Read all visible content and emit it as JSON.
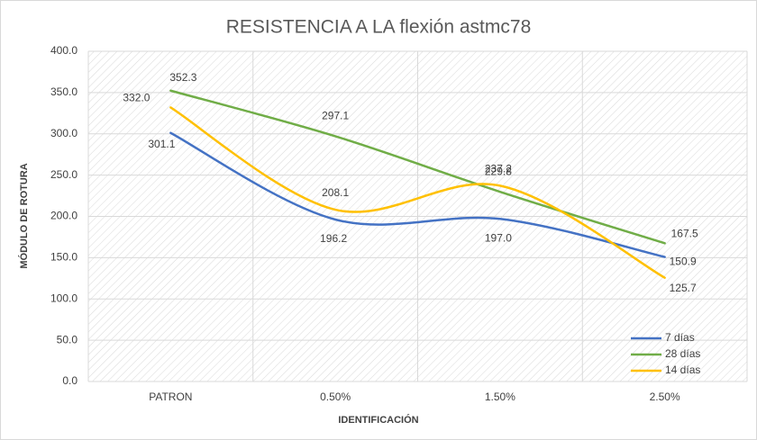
{
  "chart_data": {
    "type": "line",
    "title": "RESISTENCIA A LA flexión astmc78",
    "x_label": "IDENTIFICACIÓN",
    "y_label": "MÓDULO DE ROTURA",
    "categories": [
      "PATRON",
      "0.50%",
      "1.50%",
      "2.50%"
    ],
    "series": [
      {
        "name": "7 días",
        "color": "#4472c4",
        "values": [
          301.1,
          196.2,
          197.0,
          150.9
        ],
        "value_labels": [
          "301.1",
          "196.2",
          "197.0",
          "150.9"
        ]
      },
      {
        "name": "28 días",
        "color": "#70ad47",
        "values": [
          352.3,
          297.1,
          229.8,
          167.5
        ],
        "value_labels": [
          "352.3",
          "297.1",
          "229.8",
          "167.5"
        ]
      },
      {
        "name": "14 días",
        "color": "#ffc000",
        "values": [
          332.0,
          208.1,
          237.2,
          125.7
        ],
        "value_labels": [
          "332.0",
          "208.1",
          "237.2",
          "125.7"
        ]
      }
    ],
    "ylim": [
      0,
      400
    ],
    "yticks": [
      {
        "value": 0,
        "label": "0.0"
      },
      {
        "value": 50,
        "label": "50.0"
      },
      {
        "value": 100,
        "label": "100.0"
      },
      {
        "value": 150,
        "label": "150.0"
      },
      {
        "value": 200,
        "label": "200.0"
      },
      {
        "value": 250,
        "label": "250.0"
      },
      {
        "value": 300,
        "label": "300.0"
      },
      {
        "value": 350,
        "label": "350.0"
      },
      {
        "value": 400,
        "label": "400.0"
      }
    ],
    "grid": true,
    "smooth": true,
    "legend": "lower right"
  }
}
